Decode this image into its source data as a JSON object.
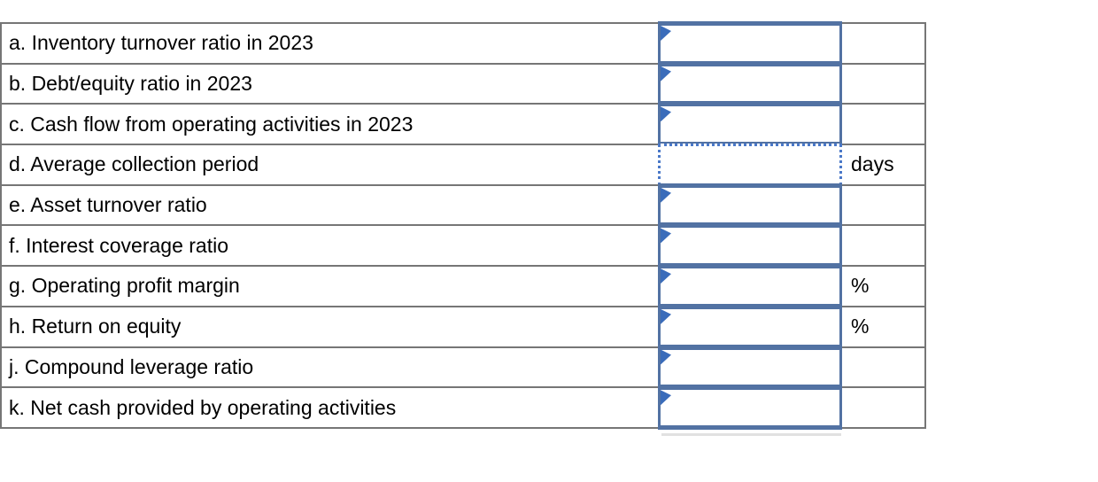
{
  "table": {
    "rows": [
      {
        "id": "a",
        "label": "a. Inventory turnover ratio in 2023",
        "value": "",
        "suffix": "",
        "state": "default"
      },
      {
        "id": "b",
        "label": "b. Debt/equity ratio in 2023",
        "value": "",
        "suffix": "",
        "state": "default"
      },
      {
        "id": "c",
        "label": "c. Cash flow from operating activities in 2023",
        "value": "",
        "suffix": "",
        "state": "default"
      },
      {
        "id": "d",
        "label": "d. Average collection period",
        "value": "",
        "suffix": "days",
        "state": "focused"
      },
      {
        "id": "e",
        "label": "e. Asset turnover ratio",
        "value": "",
        "suffix": "",
        "state": "default"
      },
      {
        "id": "f",
        "label": "f. Interest coverage ratio",
        "value": "",
        "suffix": "",
        "state": "default"
      },
      {
        "id": "g",
        "label": "g. Operating profit margin",
        "value": "",
        "suffix": "%",
        "state": "default"
      },
      {
        "id": "h",
        "label": "h. Return on equity",
        "value": "",
        "suffix": "%",
        "state": "default"
      },
      {
        "id": "j",
        "label": "j. Compound leverage ratio",
        "value": "",
        "suffix": "",
        "state": "default"
      },
      {
        "id": "k",
        "label": "k. Net cash provided by operating activities",
        "value": "",
        "suffix": "",
        "state": "default"
      }
    ]
  },
  "colors": {
    "cell_border": "#5272a3",
    "flag_marker": "#3a6cba",
    "focused_dotted_border": "#4a78c8",
    "gridline": "#767676",
    "text": "#000000"
  }
}
